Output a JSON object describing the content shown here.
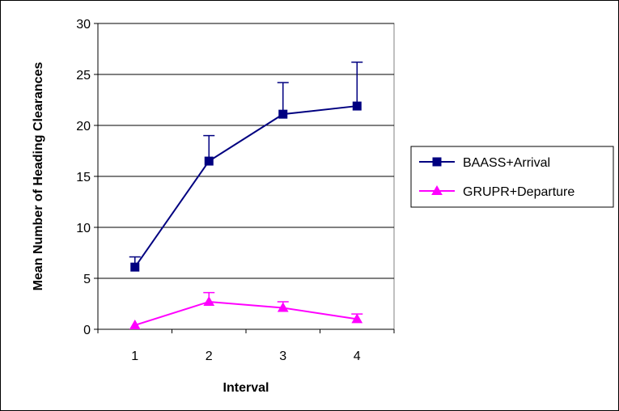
{
  "chart_data": {
    "type": "line",
    "title": "",
    "xlabel": "Interval",
    "ylabel": "Mean Number of Heading Clearances",
    "categories": [
      "1",
      "2",
      "3",
      "4"
    ],
    "ylim": [
      0,
      30
    ],
    "yticks": [
      0,
      5,
      10,
      15,
      20,
      25,
      30
    ],
    "grid": true,
    "legend_position": "right",
    "series": [
      {
        "name": "BAASS+Arrival",
        "color": "#000080",
        "marker": "square",
        "values": [
          6.1,
          16.5,
          21.1,
          21.9
        ],
        "error_upper": [
          1.0,
          2.5,
          3.1,
          4.3
        ]
      },
      {
        "name": "GRUPR+Departure",
        "color": "#FF00FF",
        "marker": "triangle",
        "values": [
          0.4,
          2.7,
          2.1,
          1.0
        ],
        "error_upper": [
          0.0,
          0.9,
          0.6,
          0.5
        ]
      }
    ]
  }
}
